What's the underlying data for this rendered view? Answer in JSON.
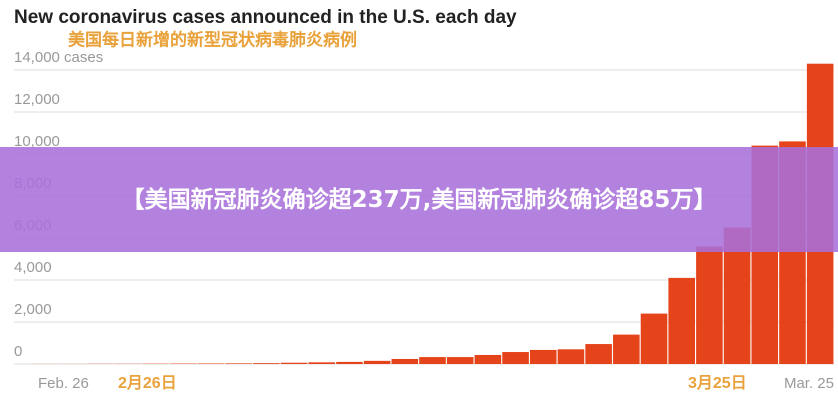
{
  "chart_data": {
    "type": "bar",
    "title": "New coronavirus cases announced in the U.S. each day",
    "subtitle": "美国每日新增的新型冠状病毒肺炎病例",
    "categories": [
      "Feb. 26",
      null,
      null,
      null,
      null,
      null,
      null,
      null,
      null,
      null,
      null,
      null,
      null,
      null,
      null,
      null,
      null,
      null,
      null,
      null,
      null,
      null,
      null,
      null,
      null,
      null,
      null,
      null,
      "Mar. 25"
    ],
    "annotations": [
      "2月26日",
      "3月25日"
    ],
    "banner": "【美国新冠肺炎确诊超237万,美国新冠肺炎确诊超85万】",
    "values": [
      5,
      5,
      10,
      10,
      15,
      20,
      25,
      30,
      40,
      60,
      80,
      100,
      150,
      240,
      330,
      330,
      430,
      570,
      670,
      700,
      950,
      1400,
      2400,
      4100,
      5600,
      6500,
      10400,
      10600,
      14300
    ],
    "color": "#e5441b",
    "ylim": [
      0,
      14000
    ],
    "yticks": [
      0,
      {
        "value": 2000,
        "label": "2,000"
      },
      {
        "value": 4000,
        "label": "4,000"
      },
      {
        "value": 6000,
        "label": "6,000"
      },
      {
        "value": 8000,
        "label": "8,000"
      },
      {
        "value": 10000,
        "label": "10,000"
      },
      {
        "value": 12000,
        "label": "12,000"
      },
      {
        "value": 14000,
        "label": "14,000 cases"
      }
    ],
    "grid": true
  }
}
